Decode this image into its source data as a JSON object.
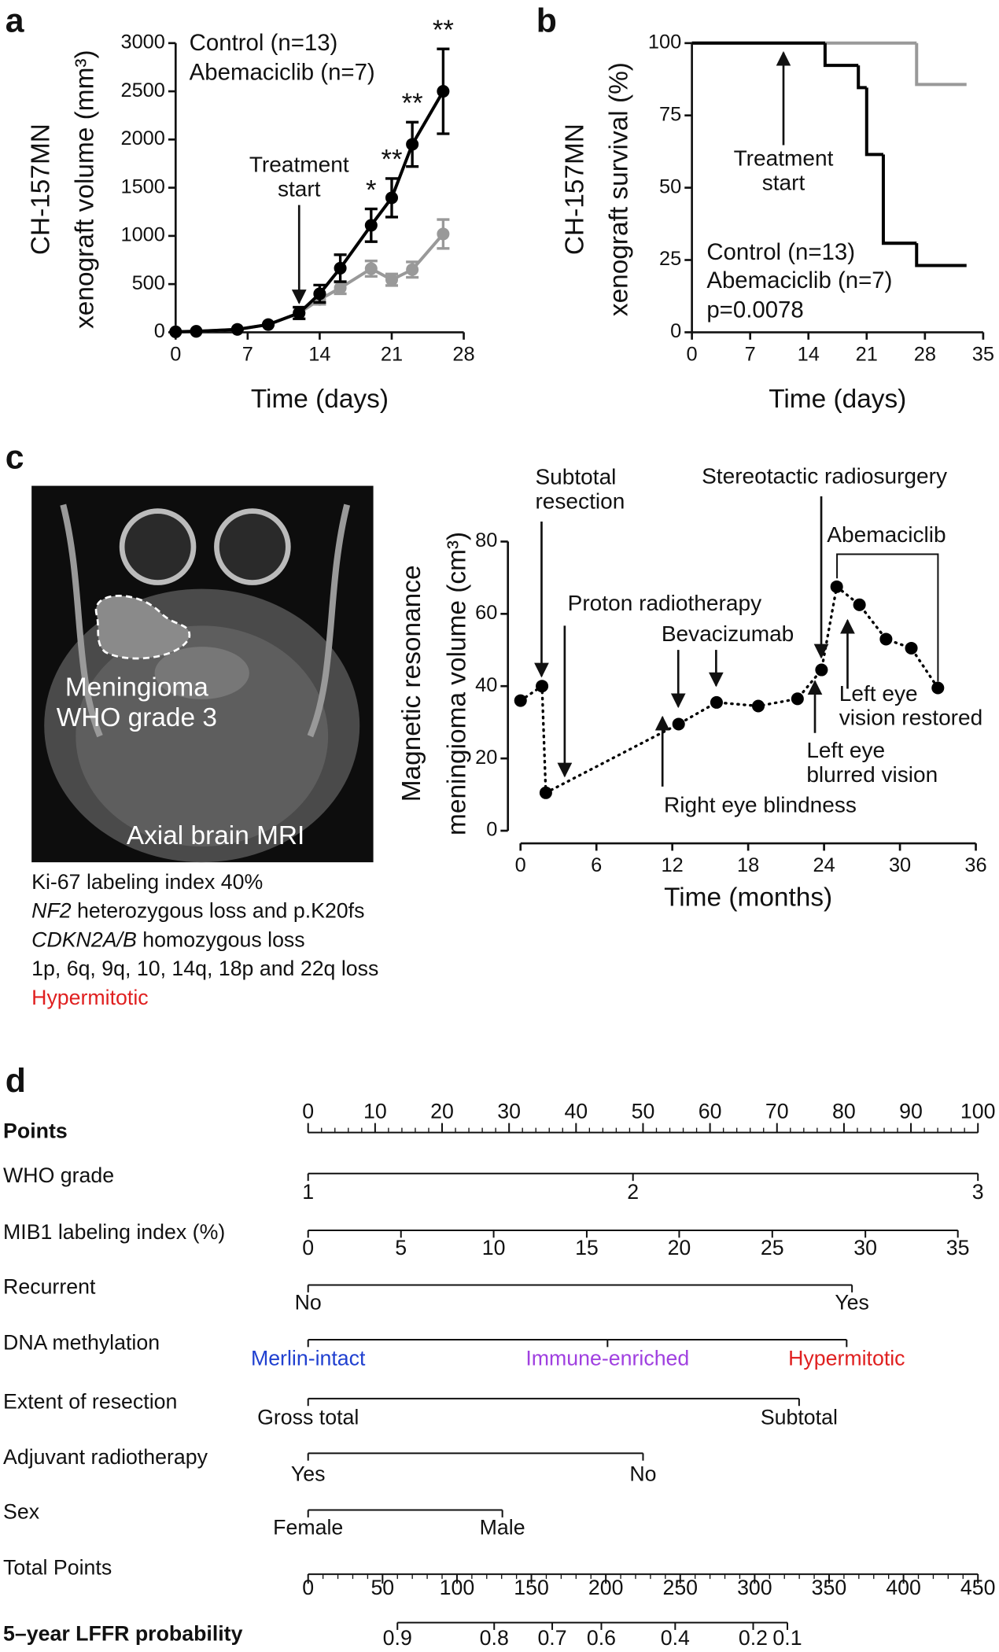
{
  "chart_data": [
    {
      "type": "line",
      "panel": "a",
      "ylabel": [
        "CH-157MN",
        "xenograft volume (mm³)"
      ],
      "xlabel": "Time (days)",
      "xlim": [
        0,
        28
      ],
      "xticks": [
        0,
        7,
        14,
        21,
        28
      ],
      "ylim": [
        0,
        3000
      ],
      "yticks": [
        0,
        500,
        1000,
        1500,
        2000,
        2500,
        3000
      ],
      "x": [
        0,
        2,
        6,
        9,
        12,
        14,
        16,
        19,
        21,
        23,
        26
      ],
      "series": [
        {
          "name": "Control (n=13)",
          "color": "#000000",
          "values": [
            5,
            10,
            30,
            80,
            200,
            400,
            665,
            1110,
            1395,
            1950,
            2500
          ],
          "errors": [
            0,
            0,
            0,
            0,
            60,
            90,
            140,
            170,
            200,
            230,
            440
          ]
        },
        {
          "name": "Abemaciclib (n=7)",
          "color": "#999999",
          "values": [
            5,
            10,
            30,
            80,
            200,
            340,
            460,
            660,
            545,
            650,
            1020
          ],
          "errors": [
            0,
            0,
            0,
            0,
            60,
            50,
            60,
            80,
            60,
            80,
            150
          ]
        }
      ],
      "annotations": [
        {
          "lines": [
            "Treatment",
            "start"
          ],
          "x": 12
        }
      ],
      "significance": {
        "x": [
          19,
          21,
          23,
          26
        ],
        "labels": [
          "*",
          "**",
          "**",
          "**"
        ]
      }
    },
    {
      "type": "step",
      "panel": "b",
      "ylabel": [
        "CH-157MN",
        "xenograft survival (%)"
      ],
      "xlabel": "Time (days)",
      "xlim": [
        0,
        35
      ],
      "xticks": [
        0,
        7,
        14,
        21,
        28,
        35
      ],
      "ylim": [
        0,
        100
      ],
      "yticks": [
        0,
        25,
        50,
        75,
        100
      ],
      "series": [
        {
          "name": "Control (n=13)",
          "color": "#000000",
          "x": [
            0,
            16,
            20,
            21,
            23,
            27,
            33
          ],
          "values": [
            100,
            92.3,
            84.6,
            61.5,
            30.8,
            23.1,
            23.1
          ]
        },
        {
          "name": "Abemaciclib (n=7)",
          "color": "#999999",
          "x": [
            0,
            27,
            33
          ],
          "values": [
            100,
            85.7,
            85.7
          ]
        }
      ],
      "annotations": [
        {
          "lines": [
            "Treatment",
            "start"
          ],
          "x": 11
        }
      ],
      "p_value": "p=0.0078"
    },
    {
      "type": "line",
      "panel": "c",
      "line_style": "dotted",
      "ylabel": [
        "Magnetic resonance",
        "meningioma volume (cm³)"
      ],
      "xlabel": "Time (months)",
      "xlim": [
        0,
        36
      ],
      "xticks": [
        0,
        6,
        12,
        18,
        24,
        30,
        36
      ],
      "ylim": [
        0,
        80
      ],
      "yticks": [
        0,
        20,
        40,
        60,
        80
      ],
      "x": [
        0,
        1.7,
        2,
        12.5,
        15.5,
        18.8,
        21.9,
        23.8,
        25,
        26.8,
        28.9,
        30.9,
        33
      ],
      "series": [
        {
          "color": "#000000",
          "values": [
            36,
            40,
            10.5,
            29.5,
            35.5,
            34.5,
            36.5,
            44.5,
            67.5,
            62.5,
            53,
            50.5,
            39.5
          ]
        }
      ],
      "annotations": [
        {
          "lines": [
            "Subtotal",
            "resection"
          ]
        },
        {
          "lines": [
            "Proton radiotherapy"
          ]
        },
        {
          "lines": [
            "Bevacizumab"
          ]
        },
        {
          "lines": [
            "Stereotactic radiosurgery"
          ]
        },
        {
          "lines": [
            "Abemaciclib"
          ]
        },
        {
          "lines": [
            "Left eye",
            "vision restored"
          ]
        },
        {
          "lines": [
            "Left eye",
            "blurred vision"
          ]
        },
        {
          "lines": [
            "Right eye blindness"
          ]
        }
      ]
    },
    {
      "type": "nomogram",
      "panel": "d",
      "rows": [
        {
          "label": "Points",
          "bold": true,
          "xlim": [
            0,
            100
          ],
          "xticks": [
            0,
            10,
            20,
            30,
            40,
            50,
            60,
            70,
            80,
            90,
            100
          ],
          "minor_step": 2
        },
        {
          "label": "WHO grade",
          "ticks": [
            {
              "value": 0,
              "label": "1"
            },
            {
              "value": 48.5,
              "label": "2"
            },
            {
              "value": 100,
              "label": "3"
            }
          ]
        },
        {
          "label": "MIB1 labeling index (%)",
          "ticks": [
            {
              "value": 0,
              "label": "0"
            },
            {
              "value": 13.86,
              "label": "5"
            },
            {
              "value": 27.7,
              "label": "10"
            },
            {
              "value": 41.6,
              "label": "15"
            },
            {
              "value": 55.4,
              "label": "20"
            },
            {
              "value": 69.3,
              "label": "25"
            },
            {
              "value": 83.2,
              "label": "30"
            },
            {
              "value": 97,
              "label": "35"
            }
          ]
        },
        {
          "label": "Recurrent",
          "ticks": [
            {
              "value": 0,
              "label": "No"
            },
            {
              "value": 81.2,
              "label": "Yes"
            }
          ]
        },
        {
          "label": "DNA methylation",
          "ticks": [
            {
              "value": 0,
              "label": "Merlin-intact"
            },
            {
              "value": 44.7,
              "label": "Immune-enriched"
            },
            {
              "value": 80.4,
              "label": "Hypermitotic"
            }
          ],
          "colors": [
            "#2040d0",
            "#a040e0",
            "#e02020"
          ]
        },
        {
          "label": "Extent of resection",
          "ticks": [
            {
              "value": 0,
              "label": "Gross total"
            },
            {
              "value": 73.3,
              "label": "Subtotal"
            }
          ]
        },
        {
          "label": "Adjuvant radiotherapy",
          "ticks": [
            {
              "value": 0,
              "label": "Yes"
            },
            {
              "value": 50,
              "label": "No"
            }
          ]
        },
        {
          "label": "Sex",
          "ticks": [
            {
              "value": 0,
              "label": "Female"
            },
            {
              "value": 29,
              "label": "Male"
            }
          ]
        },
        {
          "label": "Total Points",
          "xlim": [
            0,
            450
          ],
          "xticks": [
            0,
            50,
            100,
            150,
            200,
            250,
            300,
            350,
            400,
            450
          ],
          "minor_step": 10
        },
        {
          "label": "5–year LFFR probability",
          "bold": true,
          "scale": "total",
          "ticks": [
            {
              "value": 60,
              "label": "0.9"
            },
            {
              "value": 125,
              "label": "0.8"
            },
            {
              "value": 164,
              "label": "0.7"
            },
            {
              "value": 197,
              "label": "0.6"
            },
            {
              "value": 246.6,
              "label": "0.4"
            },
            {
              "value": 299,
              "label": "0.2"
            },
            {
              "value": 322,
              "label": "0.1"
            }
          ]
        }
      ]
    }
  ],
  "mri": {
    "labels": [
      "Meningioma",
      "WHO grade 3",
      "Axial brain MRI"
    ]
  },
  "genomics": [
    {
      "parts": [
        "Ki-67 labeling index 40%"
      ]
    },
    {
      "parts": [
        "NF2",
        " heterozygous loss and p.K20fs"
      ],
      "italic": [
        true,
        false
      ]
    },
    {
      "parts": [
        "CDKN2A/B",
        " homozygous loss"
      ],
      "italic": [
        true,
        false
      ]
    },
    {
      "parts": [
        "1p, 6q, 9q, 10, 14q, 18p and 22q loss"
      ]
    },
    {
      "parts": [
        "Hypermitotic"
      ],
      "color": "#e02020"
    }
  ]
}
